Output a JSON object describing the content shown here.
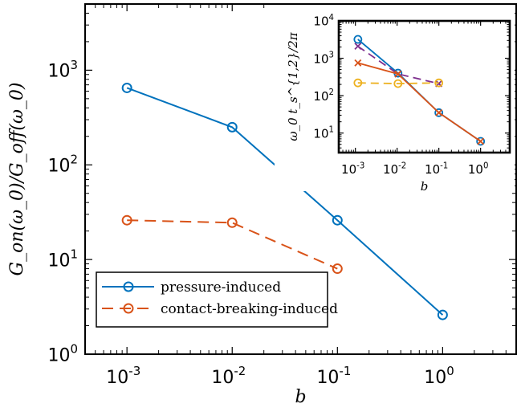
{
  "chart_data": [
    {
      "type": "line",
      "xscale": "log",
      "yscale": "log",
      "xlim": [
        0.0004,
        5
      ],
      "ylim": [
        1,
        5000
      ],
      "xlabel": "b",
      "ylabel": "G_on(ω_0)/G_off(ω_0)",
      "xticks": [
        {
          "value": 0.001,
          "base": "10",
          "exp": "-3"
        },
        {
          "value": 0.01,
          "base": "10",
          "exp": "-2"
        },
        {
          "value": 0.1,
          "base": "10",
          "exp": "-1"
        },
        {
          "value": 1,
          "base": "10",
          "exp": "0"
        }
      ],
      "yticks": [
        {
          "value": 1,
          "base": "10",
          "exp": "0"
        },
        {
          "value": 10,
          "base": "10",
          "exp": "1"
        },
        {
          "value": 100,
          "base": "10",
          "exp": "2"
        },
        {
          "value": 1000,
          "base": "10",
          "exp": "3"
        }
      ],
      "legend_position": "bottom-left",
      "series": [
        {
          "name": "pressure-induced",
          "color": "#0072BD",
          "dash": "solid",
          "marker": "circle",
          "x": [
            0.001,
            0.01,
            0.1,
            1
          ],
          "y": [
            650,
            250,
            26,
            2.6
          ]
        },
        {
          "name": "contact-breaking-induced",
          "color": "#D95319",
          "dash": "dashed",
          "marker": "circle",
          "x": [
            0.001,
            0.01,
            0.1
          ],
          "y": [
            26,
            24.5,
            8
          ]
        }
      ]
    },
    {
      "type": "line",
      "inset": true,
      "xscale": "log",
      "yscale": "log",
      "xlim": [
        0.0004,
        5
      ],
      "ylim": [
        3,
        10000
      ],
      "xlabel": "b",
      "ylabel": "ω_0 t_s^{1,2}/2π",
      "xticks": [
        {
          "value": 0.001,
          "base": "10",
          "exp": "-3"
        },
        {
          "value": 0.01,
          "base": "10",
          "exp": "-2"
        },
        {
          "value": 0.1,
          "base": "10",
          "exp": "-1"
        },
        {
          "value": 1,
          "base": "10",
          "exp": "0"
        }
      ],
      "yticks": [
        {
          "value": 10,
          "base": "10",
          "exp": "1"
        },
        {
          "value": 100,
          "base": "10",
          "exp": "2"
        },
        {
          "value": 1000,
          "base": "10",
          "exp": "3"
        },
        {
          "value": 10000,
          "base": "10",
          "exp": "4"
        }
      ],
      "series": [
        {
          "color": "#0072BD",
          "dash": "solid",
          "marker": "circle",
          "x": [
            0.00115,
            0.0105,
            0.1,
            1
          ],
          "y": [
            3200,
            400,
            35,
            6
          ]
        },
        {
          "color": "#7E2F8E",
          "dash": "dashed",
          "marker": "x",
          "x": [
            0.00115,
            0.0105,
            0.1
          ],
          "y": [
            2100,
            380,
            210
          ]
        },
        {
          "color": "#D95319",
          "dash": "solid",
          "marker": "x",
          "x": [
            0.00115,
            0.0105,
            0.1,
            1
          ],
          "y": [
            750,
            380,
            35,
            6
          ]
        },
        {
          "color": "#EDB120",
          "dash": "dashed",
          "marker": "circle",
          "x": [
            0.00115,
            0.0105,
            0.1
          ],
          "y": [
            220,
            210,
            220
          ]
        }
      ]
    }
  ]
}
